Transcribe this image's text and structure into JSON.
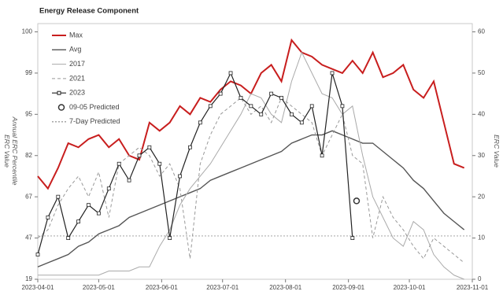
{
  "chart_data": {
    "type": "line",
    "title": "Energy Release Component",
    "y_label": "Annual ERC Percentile",
    "y_label2": "ERC Value",
    "y2_label": "ERC Value",
    "x": [
      "2023-04-01",
      "2023-04-06",
      "2023-04-11",
      "2023-04-16",
      "2023-04-21",
      "2023-04-26",
      "2023-05-01",
      "2023-05-06",
      "2023-05-11",
      "2023-05-16",
      "2023-05-21",
      "2023-05-26",
      "2023-05-31",
      "2023-06-05",
      "2023-06-10",
      "2023-06-15",
      "2023-06-20",
      "2023-06-25",
      "2023-06-30",
      "2023-07-05",
      "2023-07-10",
      "2023-07-15",
      "2023-07-20",
      "2023-07-25",
      "2023-07-30",
      "2023-08-04",
      "2023-08-09",
      "2023-08-14",
      "2023-08-19",
      "2023-08-24",
      "2023-08-29",
      "2023-09-03",
      "2023-09-08",
      "2023-09-13",
      "2023-09-18",
      "2023-09-23",
      "2023-09-28",
      "2023-10-03",
      "2023-10-08",
      "2023-10-13",
      "2023-10-18",
      "2023-10-23",
      "2023-10-28"
    ],
    "xlim": [
      "2023-04-01",
      "2023-11-01"
    ],
    "xticks": [
      "2023-04-01",
      "2023-05-01",
      "2023-06-01",
      "2023-07-01",
      "2023-08-01",
      "2023-09-01",
      "2023-10-01",
      "2023-11-01"
    ],
    "yticks": [
      19,
      47,
      67,
      82,
      95,
      99,
      100
    ],
    "y2lim": [
      0,
      62
    ],
    "y2ticks": [
      0,
      10,
      20,
      30,
      40,
      50,
      60
    ],
    "hlines": [
      10.5
    ],
    "series": [
      {
        "name": "Max",
        "color": "#c81e1e",
        "width": 2,
        "axis": "y2",
        "values": [
          25,
          22,
          27,
          33,
          32,
          34,
          35,
          32,
          34,
          30,
          29,
          38,
          36,
          38,
          42,
          40,
          44,
          43,
          46,
          48,
          47,
          45,
          50,
          52,
          48,
          58,
          55,
          54,
          52,
          51,
          50,
          53,
          50,
          55,
          49,
          50,
          52,
          46,
          44,
          48,
          38,
          28,
          27
        ]
      },
      {
        "name": "Avg",
        "color": "#555555",
        "width": 1.4,
        "axis": "y2",
        "values": [
          3,
          4,
          5,
          6,
          8,
          9,
          11,
          12,
          13,
          15,
          16,
          17,
          18,
          19,
          20,
          21,
          22,
          24,
          25,
          26,
          27,
          28,
          29,
          30,
          31,
          33,
          34,
          35,
          35,
          36,
          35,
          34,
          33,
          33,
          31,
          29,
          27,
          24,
          22,
          19,
          16,
          14,
          12
        ]
      },
      {
        "name": "2017",
        "color": "#aaaaaa",
        "width": 1,
        "axis": "y2",
        "values": [
          1,
          1,
          1,
          1,
          1,
          1,
          1,
          2,
          2,
          2,
          3,
          3,
          8,
          12,
          18,
          22,
          25,
          28,
          32,
          36,
          40,
          45,
          44,
          40,
          38,
          48,
          55,
          50,
          45,
          44,
          40,
          42,
          30,
          20,
          15,
          10,
          8,
          14,
          12,
          6,
          3,
          1,
          0
        ]
      },
      {
        "name": "2021",
        "color": "#999999",
        "width": 1,
        "dash": "4,3",
        "axis": "y2",
        "values": [
          10,
          12,
          18,
          22,
          25,
          20,
          26,
          15,
          28,
          30,
          32,
          30,
          25,
          28,
          22,
          5,
          28,
          35,
          40,
          42,
          44,
          40,
          42,
          38,
          44,
          42,
          40,
          38,
          30,
          35,
          40,
          30,
          28,
          10,
          20,
          15,
          12,
          8,
          5,
          10,
          8,
          6,
          4
        ]
      },
      {
        "name": "2023",
        "color": "#222222",
        "width": 1.2,
        "marker": "square",
        "axis": "y2",
        "values": [
          6,
          15,
          20,
          10,
          14,
          18,
          16,
          22,
          28,
          24,
          30,
          32,
          28,
          10,
          25,
          32,
          38,
          42,
          45,
          50,
          44,
          42,
          40,
          45,
          44,
          40,
          38,
          42,
          30,
          50,
          42,
          10,
          null,
          null,
          null,
          null,
          null,
          null,
          null,
          null,
          null,
          null,
          null
        ]
      },
      {
        "name": "09-05 Predicted",
        "color": "#333333",
        "marker": "circle",
        "axis": "y2",
        "x": [
          "2023-09-05"
        ],
        "values": [
          19
        ]
      },
      {
        "name": "7-Day Predicted",
        "color": "#888888",
        "width": 1.2,
        "dash": "2,2",
        "axis": "y2",
        "x": [],
        "values": []
      }
    ]
  }
}
